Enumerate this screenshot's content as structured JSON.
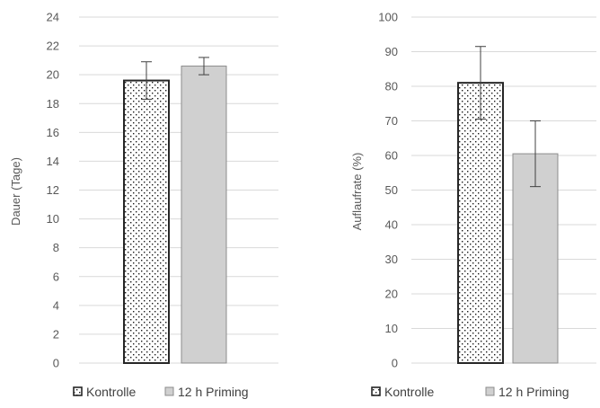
{
  "chart_data": [
    {
      "type": "bar",
      "categories": [
        ""
      ],
      "ylabel": "Dauer (Tage)",
      "ylim": [
        0,
        24
      ],
      "yticks": [
        0,
        2,
        4,
        6,
        8,
        10,
        12,
        14,
        16,
        18,
        20,
        22,
        24
      ],
      "grid": true,
      "legend": "bottom",
      "series": [
        {
          "name": "Kontrolle",
          "values": [
            19.6
          ],
          "error": [
            1.3
          ],
          "pattern": "dotted",
          "color": "#ffffff",
          "edge": "#262626"
        },
        {
          "name": "12 h Priming",
          "values": [
            20.6
          ],
          "error": [
            0.6
          ],
          "pattern": "solid",
          "color": "#d0d0d0",
          "edge": "#8c8c8c"
        }
      ]
    },
    {
      "type": "bar",
      "categories": [
        ""
      ],
      "ylabel": "Auflaufrate (%)",
      "ylim": [
        0,
        100
      ],
      "yticks": [
        0,
        10,
        20,
        30,
        40,
        50,
        60,
        70,
        80,
        90,
        100
      ],
      "grid": true,
      "legend": "bottom",
      "series": [
        {
          "name": "Kontrolle",
          "values": [
            81
          ],
          "error": [
            10.5
          ],
          "pattern": "dotted",
          "color": "#ffffff",
          "edge": "#262626"
        },
        {
          "name": "12 h Priming",
          "values": [
            60.5
          ],
          "error": [
            9.5
          ],
          "pattern": "solid",
          "color": "#d0d0d0",
          "edge": "#8c8c8c"
        }
      ]
    }
  ]
}
